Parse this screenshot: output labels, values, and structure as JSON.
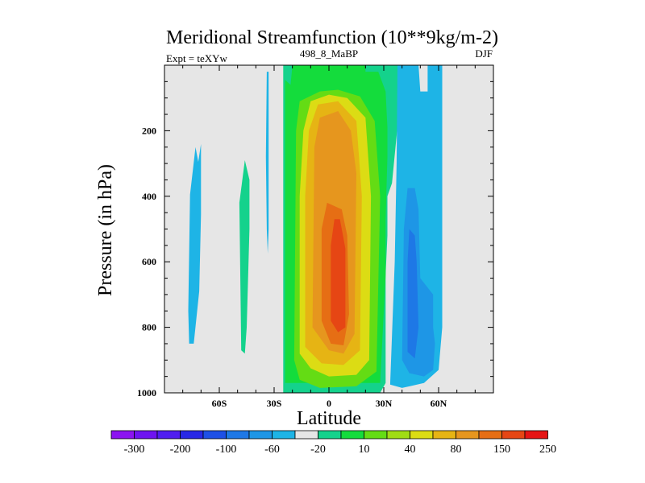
{
  "chart_data": {
    "type": "contour",
    "title": "Meridional Streamfunction (10**9kg/m-2)",
    "left_label": "Expt = teXYw",
    "center_label": "498_8_MaBP",
    "right_label": "DJF",
    "xlabel": "Latitude",
    "ylabel": "Pressure (in hPa)",
    "xlim": [
      -90,
      90
    ],
    "ylim": [
      0,
      1000
    ],
    "y_inverted": true,
    "x_ticks": [
      {
        "value": -60,
        "label": "60S"
      },
      {
        "value": -30,
        "label": "30S"
      },
      {
        "value": 0,
        "label": "0"
      },
      {
        "value": 30,
        "label": "30N"
      },
      {
        "value": 60,
        "label": "60N"
      }
    ],
    "y_ticks": [
      {
        "value": 200,
        "label": "200"
      },
      {
        "value": 400,
        "label": "400"
      },
      {
        "value": 600,
        "label": "600"
      },
      {
        "value": 800,
        "label": "800"
      },
      {
        "value": 1000,
        "label": "1000"
      }
    ],
    "background_color": "#e6e6e6",
    "colorbar": {
      "colors": [
        "#8c14f0",
        "#6e14f0",
        "#501ef0",
        "#2828e6",
        "#1e50e6",
        "#1e78e6",
        "#1e96e6",
        "#1eb4e6",
        "#e6e6e6",
        "#14d28c",
        "#14dc3c",
        "#64dc14",
        "#a0dc14",
        "#dcdc14",
        "#e6b414",
        "#e6961e",
        "#e66e14",
        "#e64614",
        "#e61414"
      ],
      "labels": [
        {
          "after_box": 1,
          "text": "-300"
        },
        {
          "after_box": 3,
          "text": "-200"
        },
        {
          "after_box": 5,
          "text": "-100"
        },
        {
          "after_box": 7,
          "text": "-60"
        },
        {
          "after_box": 9,
          "text": "-20"
        },
        {
          "after_box": 11,
          "text": "10"
        },
        {
          "after_box": 13,
          "text": "40"
        },
        {
          "after_box": 15,
          "text": "80"
        },
        {
          "after_box": 17,
          "text": "150"
        },
        {
          "after_box": 19,
          "text": "250"
        }
      ]
    },
    "contour_regions": [
      {
        "name": "sh-midlat-cell-negative",
        "color": "#1eb4e6",
        "points": [
          [
            -77,
            750
          ],
          [
            -76.5,
            850
          ],
          [
            -74,
            850
          ],
          [
            -71,
            690
          ],
          [
            -70,
            455
          ],
          [
            -70,
            240
          ],
          [
            -71.5,
            295
          ],
          [
            -73,
            250
          ],
          [
            -76,
            395
          ]
        ]
      },
      {
        "name": "sh-positive-cell",
        "color": "#14d28c",
        "points": [
          [
            -49,
            420
          ],
          [
            -48,
            870
          ],
          [
            -46,
            880
          ],
          [
            -45,
            800
          ],
          [
            -43.5,
            500
          ],
          [
            -43.5,
            350
          ],
          [
            -46,
            290
          ]
        ]
      },
      {
        "name": "sh-thin-negative",
        "color": "#1eb4e6",
        "points": [
          [
            -34,
            20
          ],
          [
            -34.5,
            280
          ],
          [
            -34,
            500
          ],
          [
            -33.5,
            575
          ],
          [
            -33,
            500
          ],
          [
            -33,
            300
          ],
          [
            -33,
            20
          ]
        ]
      },
      {
        "name": "tropical-cell-10",
        "color": "#14d28c",
        "points": [
          [
            -25,
            0
          ],
          [
            -25,
            1000
          ],
          [
            28,
            1000
          ],
          [
            31,
            970
          ],
          [
            31,
            640
          ],
          [
            32,
            520
          ],
          [
            32,
            400
          ],
          [
            34.5,
            360
          ],
          [
            38,
            160
          ],
          [
            38,
            0
          ]
        ]
      },
      {
        "name": "tropical-cell-40",
        "color": "#14dc3c",
        "points": [
          [
            -24,
            45
          ],
          [
            -24,
            970
          ],
          [
            28,
            970
          ],
          [
            31,
            640
          ],
          [
            31,
            470
          ],
          [
            32,
            280
          ],
          [
            32,
            190
          ],
          [
            31,
            80
          ],
          [
            27,
            20
          ],
          [
            20,
            20
          ],
          [
            20,
            0
          ],
          [
            -20,
            0
          ],
          [
            -21,
            60
          ]
        ]
      },
      {
        "name": "tropical-cell-80",
        "color": "#64dc14",
        "points": [
          [
            -16,
            110
          ],
          [
            -18,
            200
          ],
          [
            -19,
            900
          ],
          [
            -16,
            960
          ],
          [
            -5,
            985
          ],
          [
            15,
            980
          ],
          [
            26,
            935
          ],
          [
            28,
            400
          ],
          [
            25,
            170
          ],
          [
            17,
            95
          ],
          [
            5,
            75
          ],
          [
            -5,
            80
          ]
        ]
      },
      {
        "name": "tropical-cell-150",
        "color": "#dcdc14",
        "points": [
          [
            -10,
            110
          ],
          [
            -14,
            200
          ],
          [
            -16,
            400
          ],
          [
            -16,
            880
          ],
          [
            -10,
            925
          ],
          [
            0,
            950
          ],
          [
            15,
            945
          ],
          [
            22,
            900
          ],
          [
            23,
            400
          ],
          [
            20,
            160
          ],
          [
            10,
            100
          ],
          [
            0,
            90
          ]
        ]
      },
      {
        "name": "tropical-cell-250",
        "color": "#e6b414",
        "points": [
          [
            -6,
            120
          ],
          [
            -11,
            200
          ],
          [
            -13,
            400
          ],
          [
            -13,
            860
          ],
          [
            -4,
            910
          ],
          [
            8,
            915
          ],
          [
            17,
            870
          ],
          [
            18,
            400
          ],
          [
            15,
            170
          ],
          [
            5,
            110
          ]
        ]
      },
      {
        "name": "tropical-cell-300",
        "color": "#e6961e",
        "points": [
          [
            -5,
            160
          ],
          [
            -8,
            250
          ],
          [
            -9,
            800
          ],
          [
            0,
            870
          ],
          [
            8,
            880
          ],
          [
            14,
            820
          ],
          [
            15,
            330
          ],
          [
            12,
            200
          ],
          [
            5,
            140
          ]
        ]
      },
      {
        "name": "tropical-cell-400",
        "color": "#e66e14",
        "points": [
          [
            -1,
            420
          ],
          [
            -4,
            500
          ],
          [
            -4,
            780
          ],
          [
            1,
            850
          ],
          [
            8,
            855
          ],
          [
            11,
            760
          ],
          [
            10,
            520
          ],
          [
            7,
            440
          ]
        ]
      },
      {
        "name": "tropical-cell-500",
        "color": "#e64614",
        "points": [
          [
            3,
            470
          ],
          [
            1,
            550
          ],
          [
            1,
            780
          ],
          [
            5,
            815
          ],
          [
            9,
            800
          ],
          [
            9,
            560
          ],
          [
            6,
            470
          ]
        ]
      },
      {
        "name": "nh-negative-cell-10",
        "color": "#1eb4e6",
        "points": [
          [
            37.5,
            0
          ],
          [
            37,
            300
          ],
          [
            36,
            600
          ],
          [
            33.5,
            975
          ],
          [
            40,
            985
          ],
          [
            52,
            970
          ],
          [
            60,
            930
          ],
          [
            62,
            800
          ],
          [
            62,
            0
          ],
          [
            54,
            0
          ],
          [
            54,
            80
          ],
          [
            50,
            80
          ],
          [
            49,
            0
          ]
        ]
      },
      {
        "name": "nh-negative-cell-20",
        "color": "#1e96e6",
        "points": [
          [
            43,
            375
          ],
          [
            41,
            500
          ],
          [
            40,
            900
          ],
          [
            44,
            940
          ],
          [
            52,
            950
          ],
          [
            57,
            930
          ],
          [
            58,
            850
          ],
          [
            57,
            800
          ],
          [
            57,
            700
          ],
          [
            50,
            650
          ],
          [
            49,
            440
          ],
          [
            47,
            375
          ]
        ]
      },
      {
        "name": "nh-negative-cell-40",
        "color": "#1e78e6",
        "points": [
          [
            44,
            500
          ],
          [
            43,
            600
          ],
          [
            43,
            875
          ],
          [
            47,
            895
          ],
          [
            49,
            800
          ],
          [
            48,
            600
          ],
          [
            47,
            520
          ]
        ]
      }
    ]
  }
}
